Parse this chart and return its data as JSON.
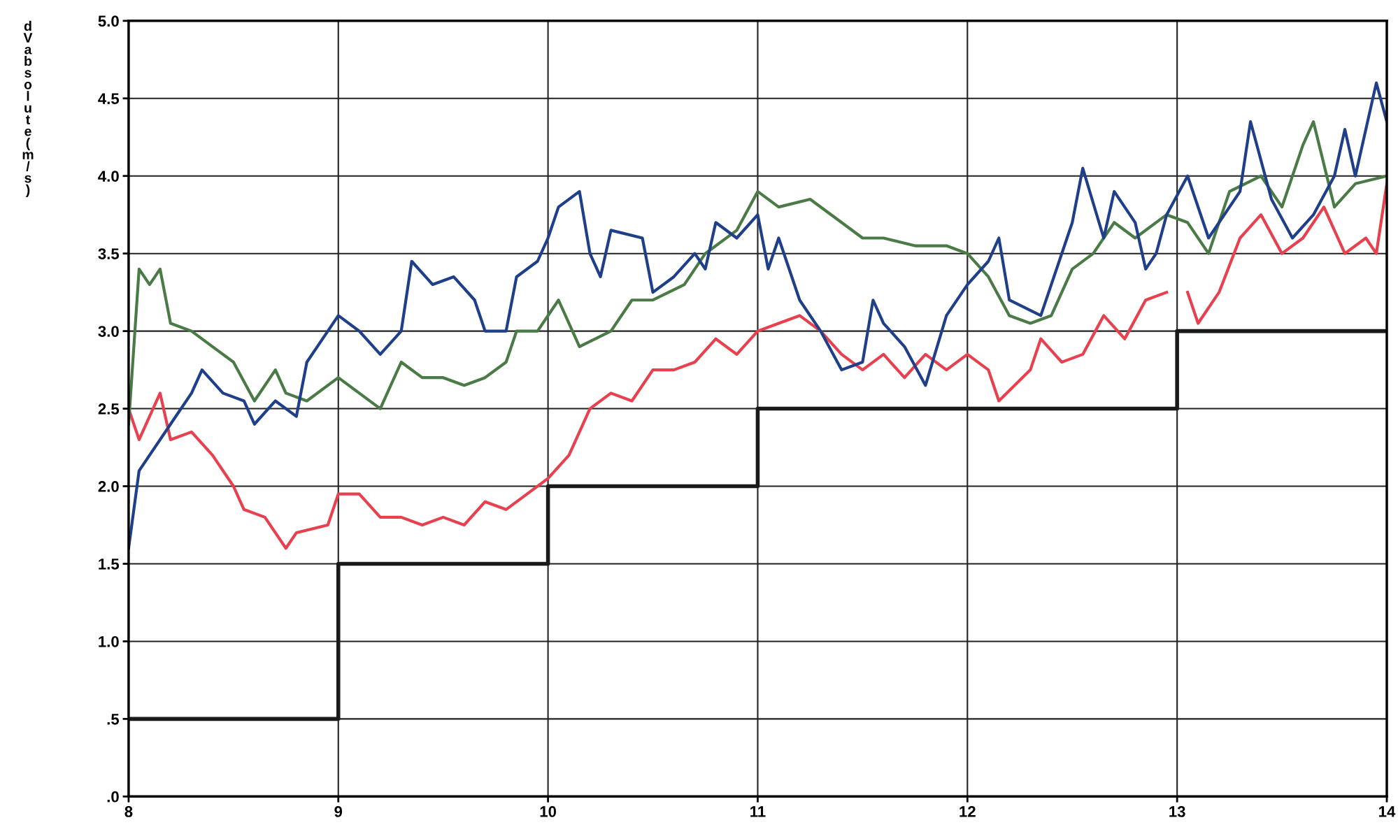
{
  "chart_data": {
    "type": "line",
    "ylabel": "dV absolute(m/s)",
    "xlim": [
      8,
      14
    ],
    "ylim": [
      0,
      5
    ],
    "xticks": [
      8,
      9,
      10,
      11,
      12,
      13,
      14
    ],
    "yticks": [
      {
        "value": 0,
        "label": ".0"
      },
      {
        "value": 0.5,
        "label": ".5"
      },
      {
        "value": 1,
        "label": "1.0"
      },
      {
        "value": 1.5,
        "label": "1.5"
      },
      {
        "value": 2,
        "label": "2.0"
      },
      {
        "value": 2.5,
        "label": "2.5"
      },
      {
        "value": 3,
        "label": "3.0"
      },
      {
        "value": 3.5,
        "label": "3.5"
      },
      {
        "value": 4,
        "label": "4.0"
      },
      {
        "value": 4.5,
        "label": "4.5"
      },
      {
        "value": 5,
        "label": "5.0"
      }
    ],
    "grid": true,
    "series": [
      {
        "type": "step",
        "color": "#1a1a1a",
        "x": [
          8,
          9,
          10,
          11,
          13,
          14
        ],
        "values": [
          0.5,
          1.5,
          2.0,
          2.5,
          3.0,
          3.0
        ]
      },
      {
        "color": "#e8404f",
        "x": [
          8.0,
          8.05,
          8.15,
          8.2,
          8.3,
          8.4,
          8.5,
          8.55,
          8.65,
          8.75,
          8.8,
          8.95,
          9.0,
          9.1,
          9.2,
          9.3,
          9.4,
          9.5,
          9.6,
          9.7,
          9.8,
          9.9,
          10.0,
          10.1,
          10.2,
          10.3,
          10.4,
          10.5,
          10.6,
          10.7,
          10.8,
          10.9,
          11.0,
          11.1,
          11.2,
          11.3,
          11.4,
          11.5,
          11.6,
          11.7,
          11.8,
          11.9,
          12.0,
          12.1,
          12.15,
          12.3,
          12.35,
          12.45,
          12.55,
          12.65,
          12.75,
          12.85,
          12.95,
          13.0,
          13.05,
          13.1,
          13.2,
          13.3,
          13.4,
          13.5,
          13.6,
          13.7,
          13.8,
          13.9,
          13.95,
          14.0
        ],
        "values": [
          2.5,
          2.3,
          2.6,
          2.3,
          2.35,
          2.2,
          2.0,
          1.85,
          1.8,
          1.6,
          1.7,
          1.75,
          1.95,
          1.95,
          1.8,
          1.8,
          1.75,
          1.8,
          1.75,
          1.9,
          1.85,
          1.95,
          2.05,
          2.2,
          2.5,
          2.6,
          2.55,
          2.75,
          2.75,
          2.8,
          2.95,
          2.85,
          3.0,
          3.05,
          3.1,
          3.0,
          2.85,
          2.75,
          2.85,
          2.7,
          2.85,
          2.75,
          2.85,
          2.75,
          2.55,
          2.75,
          2.95,
          2.8,
          2.85,
          3.1,
          2.95,
          3.2,
          3.25,
          null,
          3.25,
          3.05,
          3.25,
          3.6,
          3.75,
          3.5,
          3.6,
          3.8,
          3.5,
          3.6,
          3.5,
          3.95
        ]
      },
      {
        "color": "#4a7a45",
        "x": [
          8.0,
          8.05,
          8.1,
          8.15,
          8.2,
          8.3,
          8.4,
          8.5,
          8.6,
          8.7,
          8.75,
          8.85,
          9.0,
          9.1,
          9.2,
          9.3,
          9.4,
          9.5,
          9.6,
          9.7,
          9.8,
          9.85,
          9.95,
          10.05,
          10.15,
          10.3,
          10.4,
          10.5,
          10.65,
          10.75,
          10.9,
          11.0,
          11.1,
          11.25,
          11.4,
          11.5,
          11.6,
          11.75,
          11.9,
          12.0,
          12.1,
          12.2,
          12.3,
          12.4,
          12.5,
          12.6,
          12.7,
          12.8,
          12.95,
          13.05,
          13.15,
          13.25,
          13.4,
          13.5,
          13.6,
          13.65,
          13.75,
          13.85,
          14.0
        ],
        "values": [
          2.4,
          3.4,
          3.3,
          3.4,
          3.05,
          3.0,
          2.9,
          2.8,
          2.55,
          2.75,
          2.6,
          2.55,
          2.7,
          2.6,
          2.5,
          2.8,
          2.7,
          2.7,
          2.65,
          2.7,
          2.8,
          3.0,
          3.0,
          3.2,
          2.9,
          3.0,
          3.2,
          3.2,
          3.3,
          3.5,
          3.65,
          3.9,
          3.8,
          3.85,
          3.7,
          3.6,
          3.6,
          3.55,
          3.55,
          3.5,
          3.35,
          3.1,
          3.05,
          3.1,
          3.4,
          3.5,
          3.7,
          3.6,
          3.75,
          3.7,
          3.5,
          3.9,
          4.0,
          3.8,
          4.2,
          4.35,
          3.8,
          3.95,
          4.0
        ]
      },
      {
        "color": "#1f3f8a",
        "x": [
          8.0,
          8.05,
          8.1,
          8.2,
          8.3,
          8.35,
          8.45,
          8.55,
          8.6,
          8.7,
          8.8,
          8.85,
          8.95,
          9.0,
          9.1,
          9.2,
          9.3,
          9.35,
          9.45,
          9.55,
          9.65,
          9.7,
          9.8,
          9.85,
          9.95,
          10.0,
          10.05,
          10.15,
          10.2,
          10.25,
          10.3,
          10.45,
          10.5,
          10.6,
          10.7,
          10.75,
          10.8,
          10.9,
          11.0,
          11.05,
          11.1,
          11.2,
          11.3,
          11.4,
          11.5,
          11.55,
          11.6,
          11.7,
          11.8,
          11.9,
          12.0,
          12.1,
          12.15,
          12.2,
          12.35,
          12.4,
          12.5,
          12.55,
          12.65,
          12.7,
          12.8,
          12.85,
          12.9,
          12.95,
          13.05,
          13.15,
          13.3,
          13.35,
          13.45,
          13.55,
          13.65,
          13.75,
          13.8,
          13.85,
          13.9,
          13.95,
          14.0
        ],
        "values": [
          1.6,
          2.1,
          2.2,
          2.4,
          2.6,
          2.75,
          2.6,
          2.55,
          2.4,
          2.55,
          2.45,
          2.8,
          3.0,
          3.1,
          3.0,
          2.85,
          3.0,
          3.45,
          3.3,
          3.35,
          3.2,
          3.0,
          3.0,
          3.35,
          3.45,
          3.6,
          3.8,
          3.9,
          3.5,
          3.35,
          3.65,
          3.6,
          3.25,
          3.35,
          3.5,
          3.4,
          3.7,
          3.6,
          3.75,
          3.4,
          3.6,
          3.2,
          3.0,
          2.75,
          2.8,
          3.2,
          3.05,
          2.9,
          2.65,
          3.1,
          3.3,
          3.45,
          3.6,
          3.2,
          3.1,
          3.3,
          3.7,
          4.05,
          3.6,
          3.9,
          3.7,
          3.4,
          3.5,
          3.75,
          4.0,
          3.6,
          3.9,
          4.35,
          3.85,
          3.6,
          3.75,
          4.0,
          4.3,
          4.0,
          4.3,
          4.6,
          4.35
        ]
      }
    ]
  }
}
